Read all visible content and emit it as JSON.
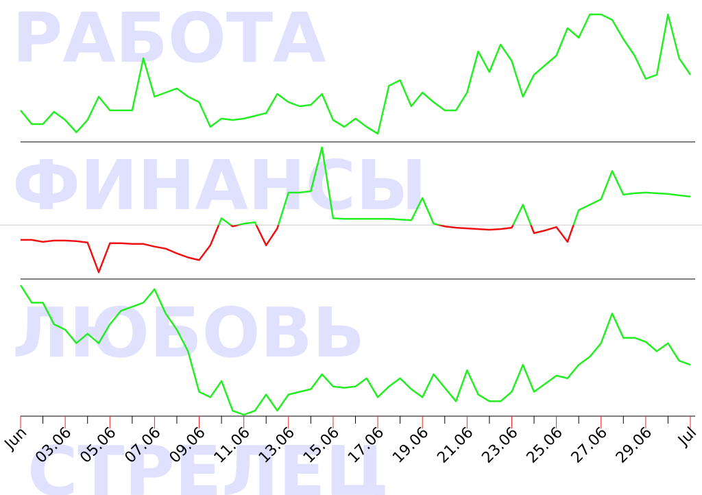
{
  "sign": "СТРЕЛЕЦ",
  "x_axis": {
    "x": [
      1,
      1.5,
      2,
      2.5,
      3,
      3.5,
      4,
      4.5,
      5,
      5.5,
      6,
      6.5,
      7,
      7.5,
      8,
      8.5,
      9,
      9.5,
      10,
      10.5,
      11,
      11.5,
      12,
      12.5,
      13,
      13.5,
      14,
      14.5,
      15,
      15.5,
      16,
      16.5,
      17,
      17.5,
      18,
      18.5,
      19,
      19.5,
      20,
      20.5,
      21,
      21.5,
      22,
      22.5,
      23,
      23.5,
      24,
      24.5,
      25,
      25.5,
      26,
      26.5,
      27,
      27.5,
      28,
      28.5,
      29,
      29.5,
      30,
      30.5,
      31
    ],
    "xlim": [
      1,
      31
    ],
    "xticks": [
      {
        "value": 1,
        "label": "Jun"
      },
      {
        "value": 3,
        "label": "03.06"
      },
      {
        "value": 5,
        "label": "05.06"
      },
      {
        "value": 7,
        "label": "07.06"
      },
      {
        "value": 9,
        "label": "09.06"
      },
      {
        "value": 11,
        "label": "11.06"
      },
      {
        "value": 13,
        "label": "13.06"
      },
      {
        "value": 15,
        "label": "15.06"
      },
      {
        "value": 17,
        "label": "17.06"
      },
      {
        "value": 19,
        "label": "19.06"
      },
      {
        "value": 21,
        "label": "21.06"
      },
      {
        "value": 23,
        "label": "23.06"
      },
      {
        "value": 25,
        "label": "25.06"
      },
      {
        "value": 27,
        "label": "27.06"
      },
      {
        "value": 29,
        "label": "29.06"
      },
      {
        "value": 31,
        "label": "Jul"
      }
    ],
    "minor_xticks": [
      2,
      4,
      6,
      8,
      10,
      12,
      14,
      16,
      18,
      20,
      22,
      24,
      26,
      28,
      30
    ],
    "tick_color": "#ee2222",
    "minor_tick_color": "#000000"
  },
  "chart_data": [
    {
      "type": "line",
      "title": "РАБОТА",
      "ylim": [
        0,
        100
      ],
      "series": [
        {
          "color": "#22ee22",
          "values": [
            22,
            12,
            12,
            21,
            15,
            6,
            15,
            32,
            22,
            22,
            22,
            60,
            32,
            35,
            38,
            32,
            28,
            10,
            16,
            15,
            16,
            18,
            20,
            34,
            28,
            25,
            26,
            34,
            15,
            10,
            16,
            10,
            5,
            40,
            44,
            25,
            35,
            28,
            22,
            22,
            35,
            65,
            50,
            70,
            58,
            32,
            48,
            55,
            62,
            82,
            75,
            92,
            92,
            88,
            74,
            62,
            45,
            48,
            92,
            60,
            48
          ]
        }
      ]
    },
    {
      "type": "line",
      "title": "ФИНАНСЫ",
      "ylim": [
        -80,
        120
      ],
      "zero_line": true,
      "series": [
        {
          "color": "#22ee22",
          "negative_color": "#ee1111",
          "values": [
            -22,
            -22,
            -25,
            -23,
            -23,
            -24,
            -26,
            -70,
            -27,
            -27,
            -28,
            -28,
            -32,
            -35,
            -42,
            -48,
            -52,
            -30,
            10,
            -2,
            2,
            4,
            -30,
            -5,
            48,
            48,
            50,
            115,
            10,
            9,
            9,
            9,
            9,
            9,
            8,
            7,
            40,
            2,
            -2,
            -4,
            -5,
            -6,
            -7,
            -6,
            -4,
            30,
            -12,
            -8,
            -3,
            -25,
            22,
            30,
            38,
            80,
            45,
            47,
            48,
            47,
            46,
            44,
            42
          ]
        }
      ]
    },
    {
      "type": "line",
      "title": "ЛЮБОВЬ",
      "ylim": [
        0,
        100
      ],
      "series": [
        {
          "color": "#22ee22",
          "values": [
            97,
            84,
            84,
            68,
            64,
            54,
            61,
            54,
            68,
            78,
            81,
            84,
            94,
            76,
            64,
            48,
            18,
            14,
            26,
            4,
            1,
            4,
            16,
            4,
            16,
            18,
            20,
            31,
            22,
            21,
            22,
            28,
            14,
            22,
            28,
            20,
            14,
            31,
            21,
            11,
            34,
            16,
            11,
            11,
            18,
            38,
            18,
            24,
            30,
            28,
            38,
            44,
            54,
            76,
            58,
            58,
            55,
            48,
            54,
            41,
            38
          ]
        }
      ]
    }
  ]
}
